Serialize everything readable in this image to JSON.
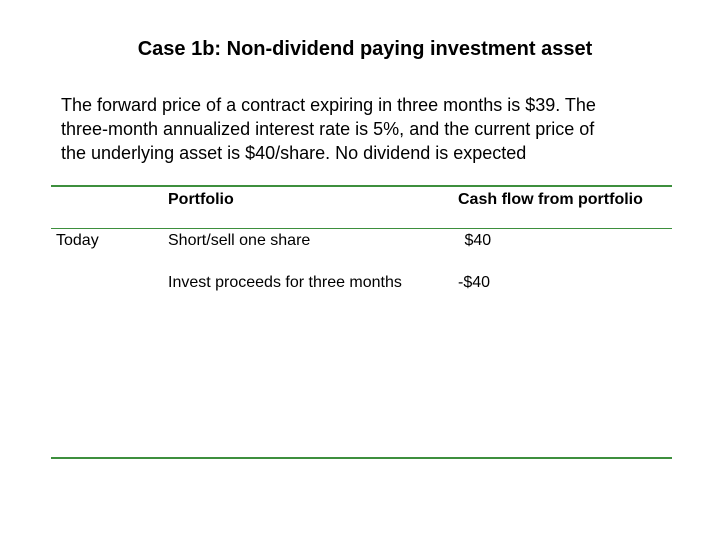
{
  "slide": {
    "title": "Case 1b: Non-dividend paying investment asset",
    "body_lines": [
      "The forward price of a contract expiring in three months is $39. The",
      "three-month annualized interest rate is 5%, and the current price of",
      "the underlying asset is $40/share. No dividend is expected"
    ]
  },
  "table": {
    "headers": {
      "portfolio": "Portfolio",
      "cash_flow": "Cash flow from portfolio"
    },
    "rows": [
      {
        "time": "Today",
        "portfolio": "Short/sell one share",
        "cash_flow": " $40"
      },
      {
        "time": "",
        "portfolio": "Invest proceeds for three months",
        "cash_flow": "-$40"
      }
    ]
  },
  "colors": {
    "rule": "#3d8f3d",
    "text": "#000000",
    "background": "#ffffff"
  }
}
